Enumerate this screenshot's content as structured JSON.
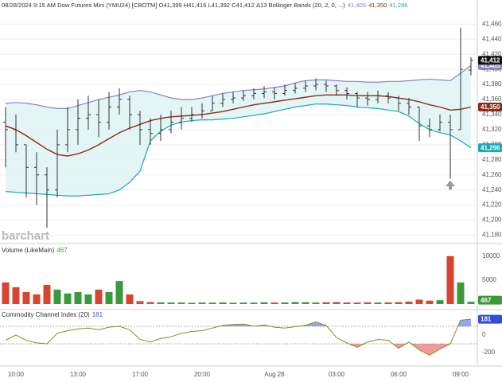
{
  "chart_data": [
    {
      "type": "ohlc",
      "title": "08/28/2024 9:15 AM Dow Futures Mini (YMU24) [CBOTM] O41,399 H41,416 L41,392 C41,412 Δ13 Bollinger Bands (20, 2, 0, ...)",
      "watermark": "barchart",
      "color": "#333333",
      "open": [
        41330,
        41320,
        41300,
        41270,
        41260,
        41240,
        41300,
        41320,
        41335,
        41340,
        41330,
        41350,
        41360,
        41340,
        41320,
        41315,
        41320,
        41330,
        41335,
        41340,
        41345,
        41355,
        41360,
        41362,
        41365,
        41368,
        41370,
        41368,
        41372,
        41375,
        41378,
        41380,
        41378,
        41372,
        41368,
        41362,
        41360,
        41365,
        41362,
        41355,
        41350,
        41325,
        41320,
        41330,
        41320,
        41399
      ],
      "high": [
        41350,
        41340,
        41300,
        41290,
        41270,
        41320,
        41350,
        41360,
        41365,
        41360,
        41370,
        41375,
        41365,
        41345,
        41335,
        41340,
        41345,
        41350,
        41350,
        41355,
        41365,
        41368,
        41370,
        41372,
        41375,
        41378,
        41376,
        41380,
        41382,
        41385,
        41388,
        41385,
        41380,
        41376,
        41370,
        41370,
        41372,
        41370,
        41365,
        41362,
        41350,
        41335,
        41340,
        41340,
        41455,
        41416
      ],
      "low": [
        41270,
        41290,
        41230,
        41220,
        41190,
        41230,
        41290,
        41300,
        41320,
        41310,
        41320,
        41340,
        41320,
        41300,
        41300,
        41305,
        41315,
        41320,
        41330,
        41335,
        41345,
        41350,
        41355,
        41358,
        41360,
        41362,
        41360,
        41365,
        41368,
        41370,
        41372,
        41370,
        41365,
        41360,
        41350,
        41352,
        41355,
        41355,
        41345,
        41340,
        41305,
        41310,
        41318,
        41255,
        41320,
        41392
      ],
      "close": [
        41320,
        41300,
        41270,
        41260,
        41240,
        41300,
        41320,
        41335,
        41340,
        41330,
        41350,
        41360,
        41340,
        41320,
        41315,
        41320,
        41330,
        41335,
        41340,
        41345,
        41355,
        41360,
        41362,
        41365,
        41368,
        41370,
        41368,
        41372,
        41375,
        41378,
        41380,
        41378,
        41372,
        41368,
        41362,
        41360,
        41365,
        41362,
        41355,
        41350,
        41325,
        41320,
        41330,
        41320,
        41400,
        41412
      ],
      "bands": {
        "upper": [
          41355,
          41356,
          41355,
          41353,
          41350,
          41348,
          41348,
          41352,
          41356,
          41360,
          41363,
          41366,
          41370,
          41372,
          41370,
          41366,
          41362,
          41360,
          41360,
          41362,
          41365,
          41368,
          41370,
          41372,
          41373,
          41374,
          41376,
          41378,
          41382,
          41385,
          41386,
          41386,
          41385,
          41384,
          41384,
          41383,
          41383,
          41384,
          41384,
          41385,
          41386,
          41387,
          41386,
          41385,
          41395,
          41405
        ],
        "middle": [
          41325,
          41320,
          41312,
          41303,
          41294,
          41287,
          41285,
          41288,
          41293,
          41300,
          41308,
          41316,
          41322,
          41327,
          41332,
          41335,
          41337,
          41338,
          41339,
          41340,
          41342,
          41344,
          41347,
          41350,
          41353,
          41355,
          41357,
          41359,
          41361,
          41363,
          41365,
          41366,
          41366,
          41366,
          41365,
          41365,
          41365,
          41364,
          41362,
          41360,
          41357,
          41353,
          41350,
          41346,
          41347,
          41350
        ],
        "lower": [
          41238,
          41237,
          41236,
          41235,
          41234,
          41233,
          41232,
          41232,
          41233,
          41234,
          41235,
          41240,
          41250,
          41265,
          41305,
          41318,
          41326,
          41330,
          41332,
          41333,
          41333,
          41334,
          41335,
          41337,
          41339,
          41341,
          41344,
          41347,
          41350,
          41352,
          41354,
          41354,
          41353,
          41352,
          41350,
          41349,
          41348,
          41346,
          41344,
          41338,
          41328,
          41320,
          41316,
          41313,
          41305,
          41296
        ],
        "colors": {
          "upper": "#8c80c8",
          "middle": "#8b2a1a",
          "lower": "#1aa9b0"
        },
        "fill": "#dcf2f2"
      },
      "last_labels": {
        "close": "41,412",
        "upper": "41,405",
        "middle": "41,350",
        "lower": "41,296"
      },
      "ylim": [
        41170,
        41492
      ],
      "yticks": [
        {
          "value": 41180,
          "label": "41,180"
        },
        {
          "value": 41200,
          "label": "41,200"
        },
        {
          "value": 41220,
          "label": "41,220"
        },
        {
          "value": 41240,
          "label": "41,240"
        },
        {
          "value": 41260,
          "label": "41,260"
        },
        {
          "value": 41280,
          "label": "41,280"
        },
        {
          "value": 41300,
          "label": "41,300"
        },
        {
          "value": 41320,
          "label": "41,320"
        },
        {
          "value": 41340,
          "label": "41,340"
        },
        {
          "value": 41360,
          "label": "41,360"
        },
        {
          "value": 41380,
          "label": "41,380"
        },
        {
          "value": 41400,
          "label": "41,400"
        },
        {
          "value": 41420,
          "label": "41,420"
        },
        {
          "value": 41440,
          "label": "41,440"
        },
        {
          "value": 41460,
          "label": "41,460"
        }
      ],
      "grid": true
    },
    {
      "type": "bar",
      "title": "Volume (LikeMain)",
      "values": [
        4500,
        3500,
        2500,
        2000,
        4000,
        3000,
        2200,
        2500,
        2000,
        3000,
        2500,
        4800,
        2000,
        600,
        400,
        350,
        300,
        300,
        250,
        300,
        280,
        320,
        260,
        300,
        280,
        350,
        300,
        320,
        400,
        380,
        300,
        350,
        400,
        300,
        280,
        350,
        300,
        320,
        380,
        500,
        900,
        700,
        800,
        10000,
        4500,
        467
      ],
      "up_color": "#3a9a3a",
      "down_color": "#d9432f",
      "ylim": [
        -1000,
        12300
      ],
      "yticks": [
        5000,
        10000
      ],
      "grid": false
    },
    {
      "type": "line",
      "title": "Commodity Channel Index (20)",
      "categories": [
        null,
        "10:00",
        null,
        null,
        null,
        null,
        null,
        "13:00",
        null,
        null,
        null,
        null,
        null,
        "17:00",
        null,
        null,
        null,
        null,
        null,
        "20:00",
        null,
        null,
        null,
        null,
        null,
        null,
        "Aug 28",
        null,
        null,
        null,
        null,
        null,
        "03:00",
        null,
        null,
        null,
        null,
        null,
        "06:00",
        null,
        null,
        null,
        null,
        null,
        "09:00",
        null
      ],
      "values": [
        -60,
        0,
        -60,
        -90,
        -100,
        20,
        50,
        70,
        80,
        60,
        90,
        100,
        60,
        -50,
        -80,
        -40,
        -20,
        20,
        40,
        50,
        80,
        110,
        120,
        125,
        100,
        115,
        90,
        80,
        95,
        110,
        150,
        110,
        -30,
        -90,
        -140,
        -80,
        -50,
        -60,
        -150,
        -80,
        -170,
        -230,
        -160,
        -100,
        170,
        181
      ],
      "color": "#8a8a1e",
      "badge_color": "#2f4fd8",
      "levels": [
        100,
        -100
      ],
      "overbought_color": "#3f5fe0",
      "oversold_color": "#e04848",
      "ylim": [
        -355,
        282
      ],
      "yticks": [
        -200,
        0
      ],
      "grid": false
    }
  ]
}
